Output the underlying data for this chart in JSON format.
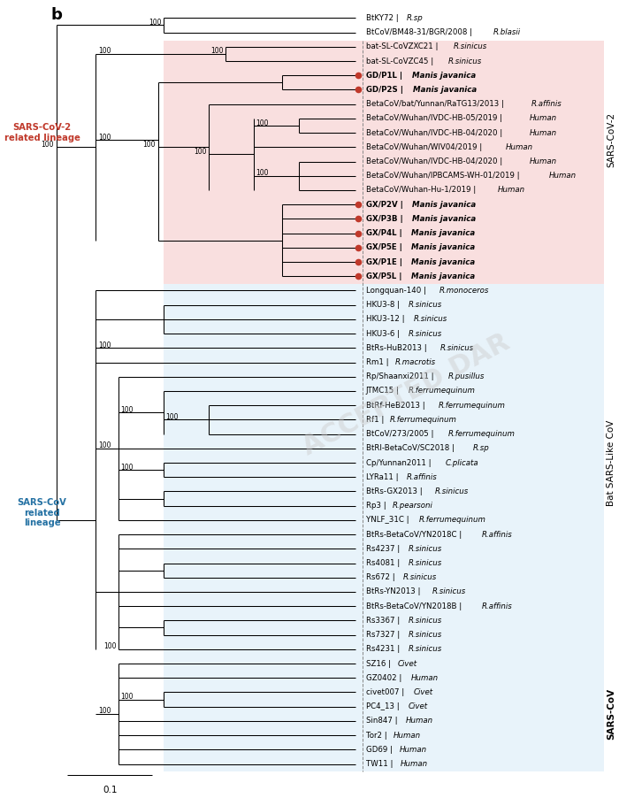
{
  "taxa": [
    {
      "name": "BtKY72",
      "host": "R.sp",
      "y": 1,
      "red_dot": false,
      "bold": false
    },
    {
      "name": "BtCoV/BM48-31/BGR/2008",
      "host": "R.blasii",
      "y": 2,
      "red_dot": false,
      "bold": false
    },
    {
      "name": "bat-SL-CoVZXC21",
      "host": "R.sinicus",
      "y": 3,
      "red_dot": false,
      "bold": false
    },
    {
      "name": "bat-SL-CoVZC45",
      "host": "R.sinicus",
      "y": 4,
      "red_dot": false,
      "bold": false
    },
    {
      "name": "GD/P1L",
      "host": "Manis javanica",
      "y": 5,
      "red_dot": true,
      "bold": true
    },
    {
      "name": "GD/P2S",
      "host": "Manis javanica",
      "y": 6,
      "red_dot": true,
      "bold": true
    },
    {
      "name": "BetaCoV/bat/Yunnan/RaTG13/2013",
      "host": "R.affinis",
      "y": 7,
      "red_dot": false,
      "bold": false
    },
    {
      "name": "BetaCoV/Wuhan/IVDC-HB-05/2019",
      "host": "Human",
      "y": 8,
      "red_dot": false,
      "bold": false
    },
    {
      "name": "BetaCoV/Wuhan/IVDC-HB-04/2020",
      "host": "Human",
      "y": 9,
      "red_dot": false,
      "bold": false
    },
    {
      "name": "BetaCoV/Wuhan/WIV04/2019",
      "host": "Human",
      "y": 10,
      "red_dot": false,
      "bold": false
    },
    {
      "name": "BetaCoV/Wuhan/IVDC-HB-04/2020",
      "host": "Human",
      "y": 11,
      "red_dot": false,
      "bold": false
    },
    {
      "name": "BetaCoV/Wuhan/IPBCAMS-WH-01/2019",
      "host": "Human",
      "y": 12,
      "red_dot": false,
      "bold": false
    },
    {
      "name": "BetaCoV/Wuhan-Hu-1/2019",
      "host": "Human",
      "y": 13,
      "red_dot": false,
      "bold": false
    },
    {
      "name": "GX/P2V",
      "host": "Manis javanica",
      "y": 14,
      "red_dot": true,
      "bold": true
    },
    {
      "name": "GX/P3B",
      "host": "Manis javanica",
      "y": 15,
      "red_dot": true,
      "bold": true
    },
    {
      "name": "GX/P4L",
      "host": "Manis javanica",
      "y": 16,
      "red_dot": true,
      "bold": true
    },
    {
      "name": "GX/P5E",
      "host": "Manis javanica",
      "y": 17,
      "red_dot": true,
      "bold": true
    },
    {
      "name": "GX/P1E",
      "host": "Manis javanica",
      "y": 18,
      "red_dot": true,
      "bold": true
    },
    {
      "name": "GX/P5L",
      "host": "Manis javanica",
      "y": 19,
      "red_dot": true,
      "bold": true
    },
    {
      "name": "Longquan-140",
      "host": "R.monoceros",
      "y": 20,
      "red_dot": false,
      "bold": false
    },
    {
      "name": "HKU3-8",
      "host": "R.sinicus",
      "y": 21,
      "red_dot": false,
      "bold": false
    },
    {
      "name": "HKU3-12",
      "host": "R.sinicus",
      "y": 22,
      "red_dot": false,
      "bold": false
    },
    {
      "name": "HKU3-6",
      "host": "R.sinicus",
      "y": 23,
      "red_dot": false,
      "bold": false
    },
    {
      "name": "BtRs-HuB2013",
      "host": "R.sinicus",
      "y": 24,
      "red_dot": false,
      "bold": false
    },
    {
      "name": "Rm1",
      "host": "R.macrotis",
      "y": 25,
      "red_dot": false,
      "bold": false
    },
    {
      "name": "Rp/Shaanxi2011",
      "host": "R.pusillus",
      "y": 26,
      "red_dot": false,
      "bold": false
    },
    {
      "name": "JTMC15",
      "host": "R.ferrumequinum",
      "y": 27,
      "red_dot": false,
      "bold": false
    },
    {
      "name": "BtRf-HeB2013",
      "host": "R.ferrumequinum",
      "y": 28,
      "red_dot": false,
      "bold": false
    },
    {
      "name": "Rf1",
      "host": "R.ferrumequinum",
      "y": 29,
      "red_dot": false,
      "bold": false
    },
    {
      "name": "BtCoV/273/2005",
      "host": "R.ferrumequinum",
      "y": 30,
      "red_dot": false,
      "bold": false
    },
    {
      "name": "BtRI-BetaCoV/SC2018",
      "host": "R.sp",
      "y": 31,
      "red_dot": false,
      "bold": false
    },
    {
      "name": "Cp/Yunnan2011",
      "host": "C.plicata",
      "y": 32,
      "red_dot": false,
      "bold": false
    },
    {
      "name": "LYRa11",
      "host": "R.affinis",
      "y": 33,
      "red_dot": false,
      "bold": false
    },
    {
      "name": "BtRs-GX2013",
      "host": "R.sinicus",
      "y": 34,
      "red_dot": false,
      "bold": false
    },
    {
      "name": "Rp3",
      "host": "R.pearsoni",
      "y": 35,
      "red_dot": false,
      "bold": false
    },
    {
      "name": "YNLF_31C",
      "host": "R.ferrumequinum",
      "y": 36,
      "red_dot": false,
      "bold": false
    },
    {
      "name": "BtRs-BetaCoV/YN2018C",
      "host": "R.affinis",
      "y": 37,
      "red_dot": false,
      "bold": false
    },
    {
      "name": "Rs4237",
      "host": "R.sinicus",
      "y": 38,
      "red_dot": false,
      "bold": false
    },
    {
      "name": "Rs4081",
      "host": "R.sinicus",
      "y": 39,
      "red_dot": false,
      "bold": false
    },
    {
      "name": "Rs672",
      "host": "R.sinicus",
      "y": 40,
      "red_dot": false,
      "bold": false
    },
    {
      "name": "BtRs-YN2013",
      "host": "R.sinicus",
      "y": 41,
      "red_dot": false,
      "bold": false
    },
    {
      "name": "BtRs-BetaCoV/YN2018B",
      "host": "R.affinis",
      "y": 42,
      "red_dot": false,
      "bold": false
    },
    {
      "name": "Rs3367",
      "host": "R.sinicus",
      "y": 43,
      "red_dot": false,
      "bold": false
    },
    {
      "name": "Rs7327",
      "host": "R.sinicus",
      "y": 44,
      "red_dot": false,
      "bold": false
    },
    {
      "name": "Rs4231",
      "host": "R.sinicus",
      "y": 45,
      "red_dot": false,
      "bold": false
    },
    {
      "name": "SZ16",
      "host": "Civet",
      "y": 46,
      "red_dot": false,
      "bold": false
    },
    {
      "name": "GZ0402",
      "host": "Human",
      "y": 47,
      "red_dot": false,
      "bold": false
    },
    {
      "name": "civet007",
      "host": "Civet",
      "y": 48,
      "red_dot": false,
      "bold": false
    },
    {
      "name": "PC4_13",
      "host": "Civet",
      "y": 49,
      "red_dot": false,
      "bold": false
    },
    {
      "name": "Sin847",
      "host": "Human",
      "y": 50,
      "red_dot": false,
      "bold": false
    },
    {
      "name": "Tor2",
      "host": "Human",
      "y": 51,
      "red_dot": false,
      "bold": false
    },
    {
      "name": "GD69",
      "host": "Human",
      "y": 52,
      "red_dot": false,
      "bold": false
    },
    {
      "name": "TW11",
      "host": "Human",
      "y": 53,
      "red_dot": false,
      "bold": false
    }
  ],
  "label_fontsize": 6.2,
  "bootstrap_fontsize": 5.5,
  "pink_box_color": "#f5c6c6",
  "blue_box_color": "#cce5f5",
  "sars2_lineage_color": "#c0392b",
  "sarscov_lineage_color": "#2471a3"
}
